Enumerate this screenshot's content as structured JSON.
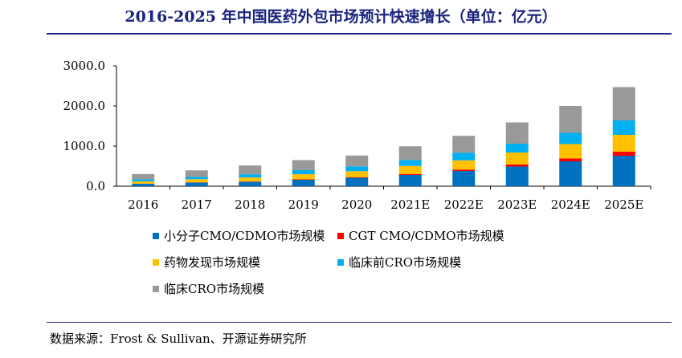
{
  "title": "2016-2025 年中国医药外包市场预计快速增长（单位：亿元）",
  "source": "数据来源：Frost & Sullivan、开源证券研究所",
  "colors": {
    "title": "#1a237e",
    "series": [
      "#0070c0",
      "#ff0000",
      "#ffc000",
      "#00b0f0",
      "#999999"
    ]
  },
  "chart_data": {
    "type": "bar",
    "stacked": true,
    "categories": [
      "2016",
      "2017",
      "2018",
      "2019",
      "2020",
      "2021E",
      "2022E",
      "2023E",
      "2024E",
      "2025E"
    ],
    "y_tick_labels": [
      "0.0",
      "1000.0",
      "2000.0",
      "3000.0"
    ],
    "ylim": [
      0,
      3000
    ],
    "grid": false,
    "legend_position": "bottom",
    "series": [
      {
        "name": "小分子CMO/CDMO市场规模",
        "values": [
          60,
          90,
          110,
          160,
          210,
          280,
          380,
          490,
          620,
          760
        ]
      },
      {
        "name": "CGT CMO/CDMO市场规模",
        "values": [
          3,
          5,
          7,
          10,
          15,
          25,
          35,
          50,
          70,
          100
        ]
      },
      {
        "name": "药物发现市场规模",
        "values": [
          60,
          80,
          100,
          130,
          150,
          200,
          230,
          300,
          360,
          420
        ]
      },
      {
        "name": "临床前CRO市场规模",
        "values": [
          50,
          60,
          80,
          100,
          120,
          150,
          190,
          220,
          280,
          360
        ]
      },
      {
        "name": "临床CRO市场规模",
        "values": [
          130,
          160,
          220,
          250,
          270,
          340,
          420,
          530,
          670,
          830
        ]
      }
    ]
  }
}
